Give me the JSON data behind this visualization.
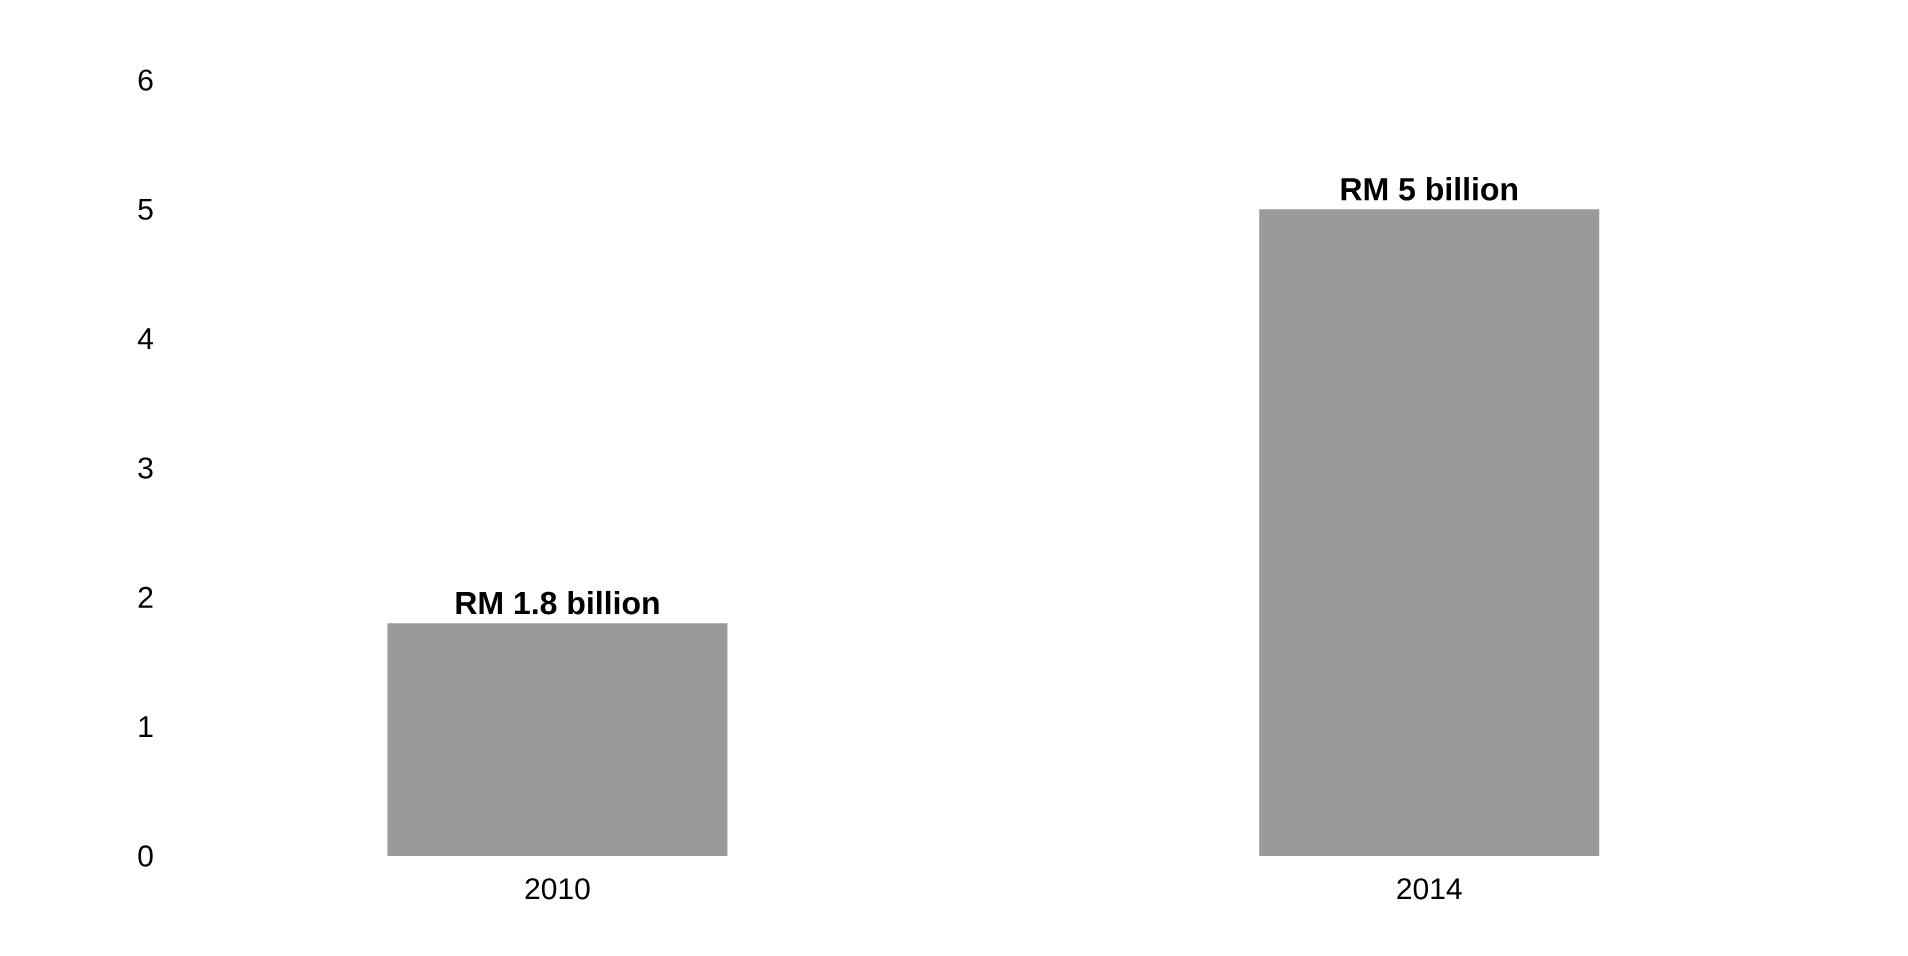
{
  "chart_data": {
    "type": "bar",
    "categories": [
      "2010",
      "2014"
    ],
    "values": [
      1.8,
      5
    ],
    "value_labels": [
      "RM 1.8 billion",
      "RM 5 billion"
    ],
    "color": "#9a9a9a",
    "ylim": [
      0,
      6
    ],
    "yticks": [
      0,
      1,
      2,
      3,
      4,
      5,
      6
    ],
    "grid": false
  }
}
